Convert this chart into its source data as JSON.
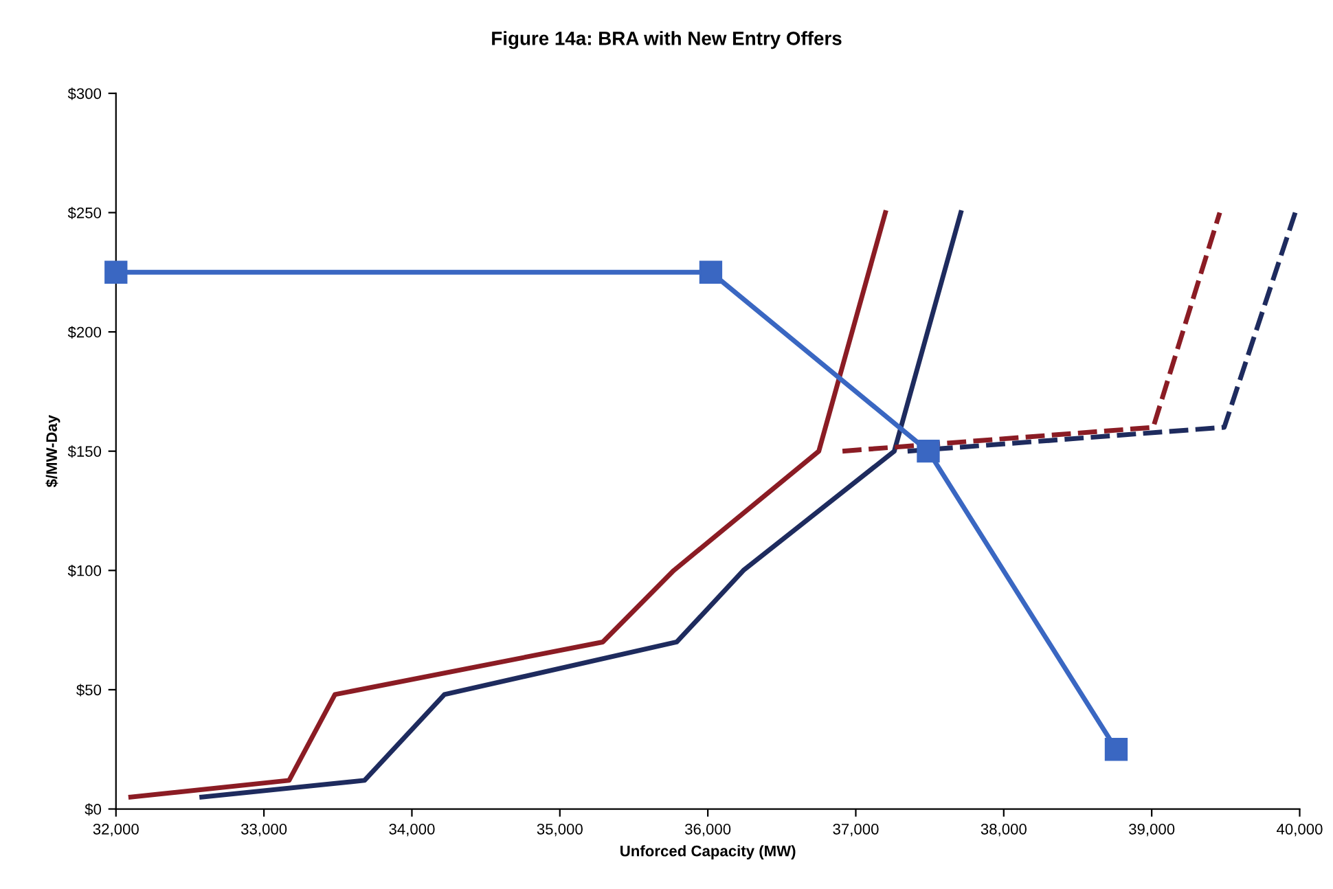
{
  "chart_data": {
    "type": "line",
    "title": "Figure 14a: BRA with New Entry Offers",
    "xlabel": "Unforced Capacity (MW)",
    "ylabel": "$/MW-Day",
    "xlim": [
      32000,
      40000
    ],
    "ylim": [
      0,
      300
    ],
    "xticks": [
      {
        "value": 32000,
        "label": "32,000"
      },
      {
        "value": 33000,
        "label": "33,000"
      },
      {
        "value": 34000,
        "label": "34,000"
      },
      {
        "value": 35000,
        "label": "35,000"
      },
      {
        "value": 36000,
        "label": "36,000"
      },
      {
        "value": 37000,
        "label": "37,000"
      },
      {
        "value": 38000,
        "label": "38,000"
      },
      {
        "value": 39000,
        "label": "39,000"
      },
      {
        "value": 40000,
        "label": "40,000"
      }
    ],
    "yticks": [
      {
        "value": 0,
        "label": "$0"
      },
      {
        "value": 50,
        "label": "$50"
      },
      {
        "value": 100,
        "label": "$100"
      },
      {
        "value": 150,
        "label": "$150"
      },
      {
        "value": 200,
        "label": "$200"
      },
      {
        "value": 250,
        "label": "$250"
      },
      {
        "value": 300,
        "label": "$300"
      }
    ],
    "grid": false,
    "series": [
      {
        "color": "#8b1c24",
        "line_style": "solid",
        "marker": "none",
        "x": [
          32100,
          33170,
          33480,
          35290,
          35770,
          36750,
          37200
        ],
        "values": [
          5,
          12,
          48,
          70,
          100,
          150,
          250
        ]
      },
      {
        "color": "#1e2b5e",
        "line_style": "solid",
        "marker": "none",
        "x": [
          32580,
          33680,
          34220,
          35790,
          36240,
          37260,
          37710
        ],
        "values": [
          5,
          12,
          48,
          70,
          100,
          150,
          250
        ]
      },
      {
        "color": "#8b1c24",
        "line_style": "dashed",
        "marker": "none",
        "x": [
          36910,
          39010,
          39460
        ],
        "values": [
          150,
          160,
          250
        ]
      },
      {
        "color": "#1e2b5e",
        "line_style": "dashed",
        "marker": "none",
        "x": [
          37350,
          39490,
          39970
        ],
        "values": [
          150,
          160,
          250
        ]
      },
      {
        "color": "#3a67c2",
        "line_style": "solid",
        "marker": "square",
        "x": [
          32000,
          36020,
          37490,
          38760
        ],
        "values": [
          225,
          225,
          150,
          25
        ]
      }
    ]
  }
}
